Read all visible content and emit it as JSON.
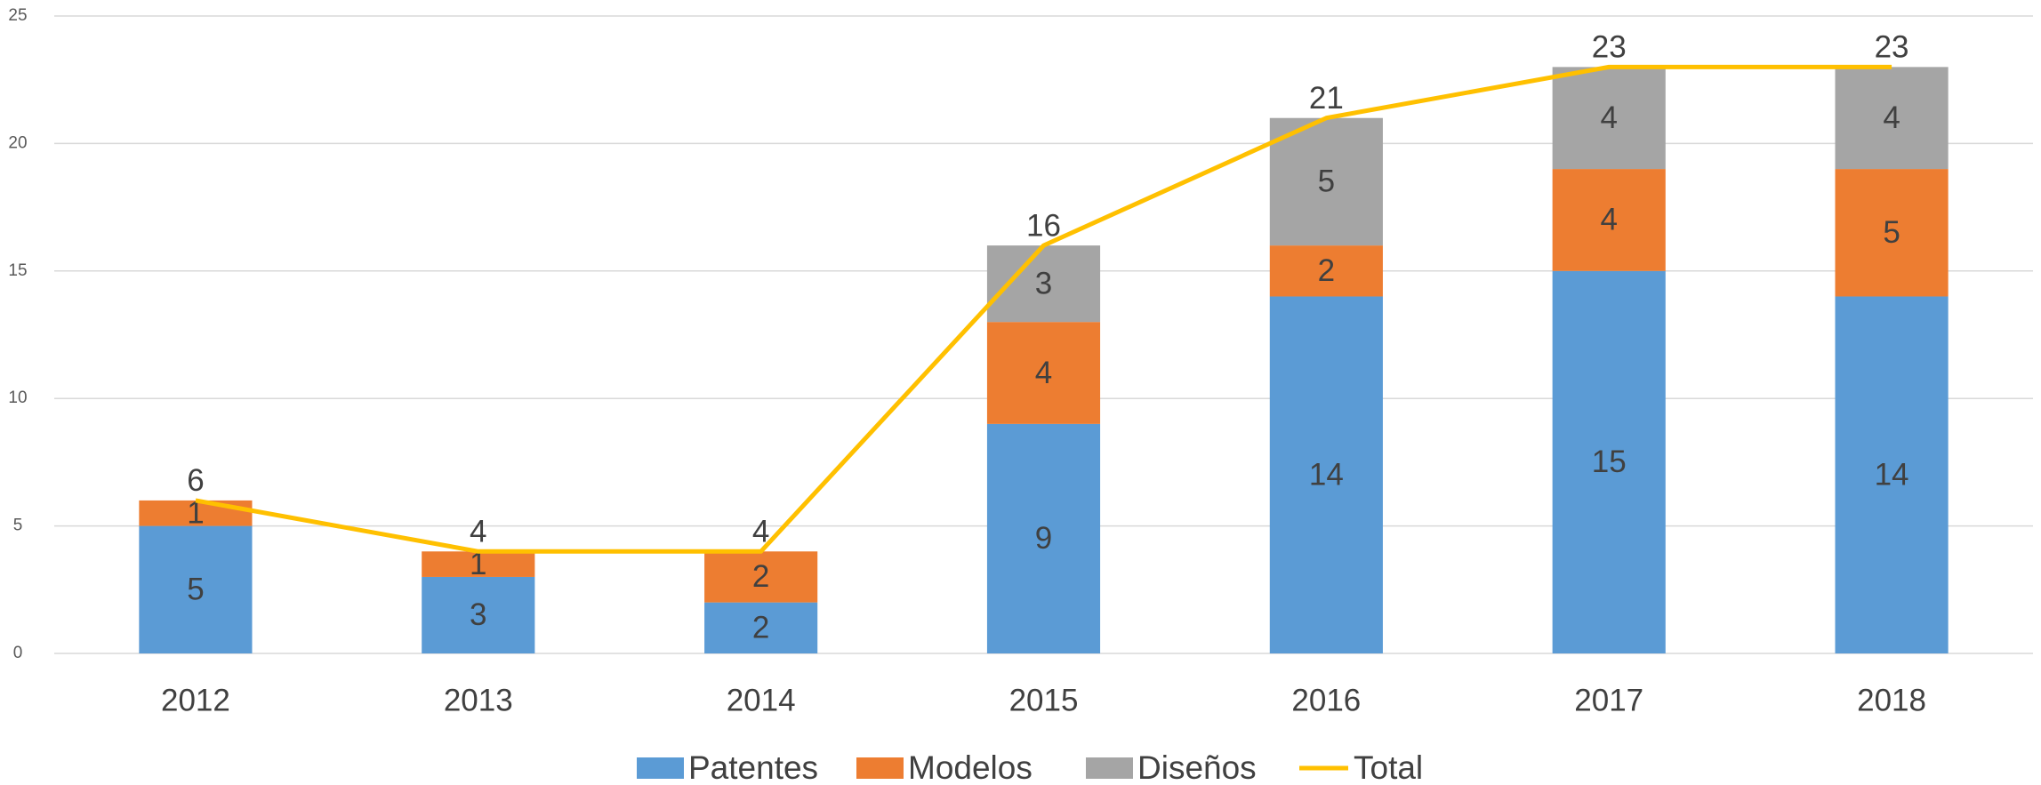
{
  "chart_data": {
    "type": "bar",
    "stacked": true,
    "categories": [
      "2012",
      "2013",
      "2014",
      "2015",
      "2016",
      "2017",
      "2018"
    ],
    "series": [
      {
        "name": "Patentes",
        "color": "#5b9bd5",
        "values": [
          5,
          3,
          2,
          9,
          14,
          15,
          14
        ]
      },
      {
        "name": "Modelos",
        "color": "#ed7d31",
        "values": [
          1,
          1,
          2,
          4,
          2,
          4,
          5
        ]
      },
      {
        "name": "Diseños",
        "color": "#a5a5a5",
        "values": [
          null,
          null,
          null,
          3,
          5,
          4,
          4
        ]
      },
      {
        "name": "Total",
        "type": "line",
        "color": "#ffc000",
        "values": [
          6,
          4,
          4,
          16,
          21,
          23,
          23
        ]
      }
    ],
    "ylim": [
      0,
      25
    ],
    "yticks": [
      0,
      5,
      10,
      15,
      20,
      25
    ],
    "grid": true,
    "legend": "bottom"
  }
}
